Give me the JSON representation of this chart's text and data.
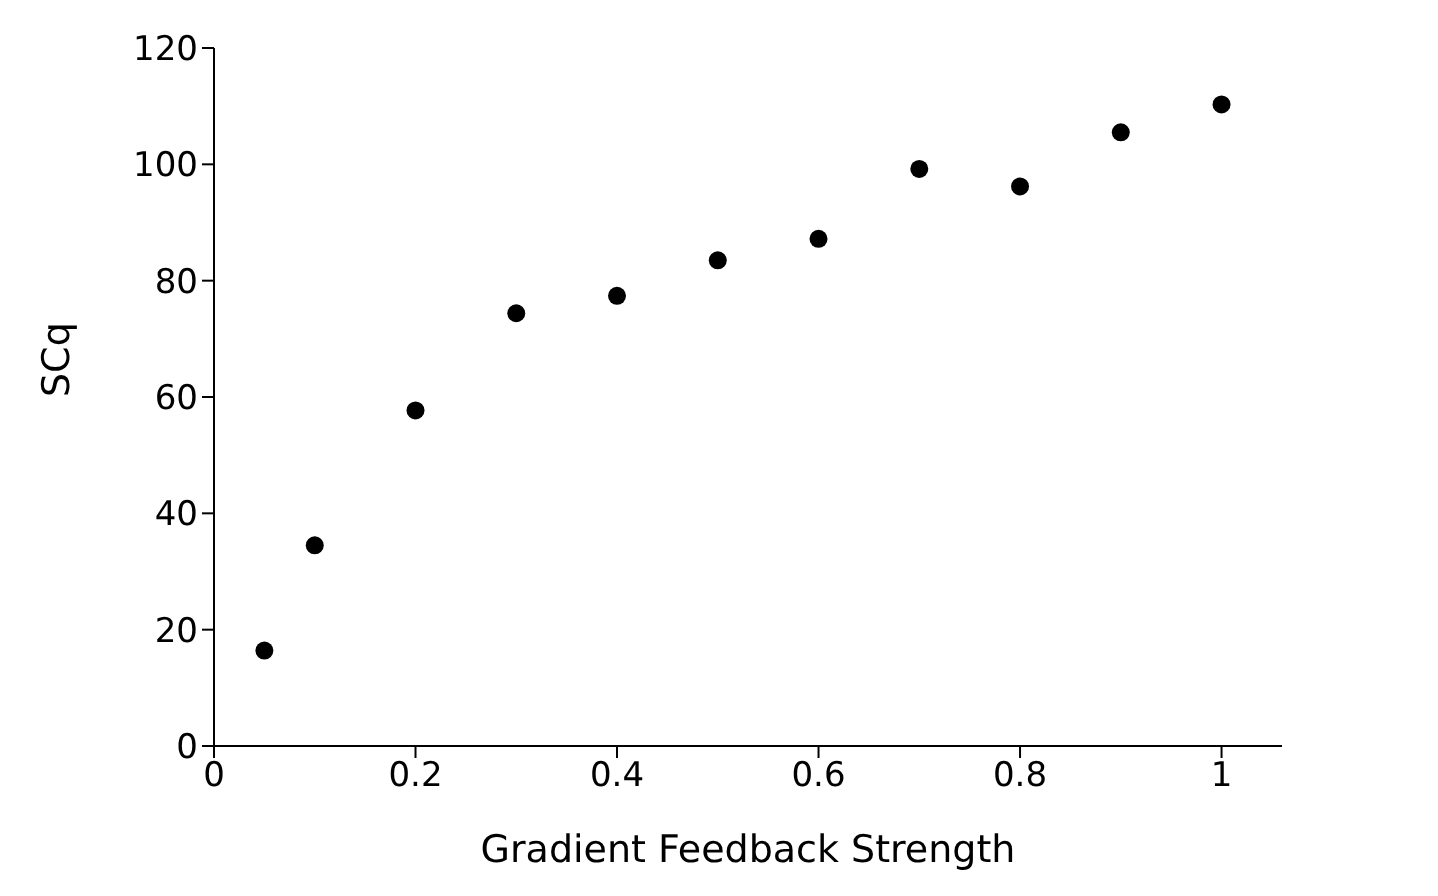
{
  "chart_data": {
    "type": "scatter",
    "xlabel": "Gradient Feedback Strength",
    "ylabel": "SCq",
    "x": [
      0.05,
      0.1,
      0.2,
      0.3,
      0.4,
      0.5,
      0.6,
      0.7,
      0.8,
      0.9,
      1.0
    ],
    "values": [
      16.4,
      34.5,
      57.7,
      74.4,
      77.4,
      83.5,
      87.2,
      99.2,
      96.2,
      105.5,
      110.3
    ],
    "color": "#000000",
    "marker": "circle",
    "grid": false,
    "legend": false,
    "xlim": [
      0,
      1.06
    ],
    "xticks": [
      0,
      0.2,
      0.4,
      0.6,
      0.8,
      1
    ],
    "ylim": [
      0,
      120
    ],
    "yticks": [
      0,
      20,
      40,
      60,
      80,
      100,
      120
    ]
  }
}
